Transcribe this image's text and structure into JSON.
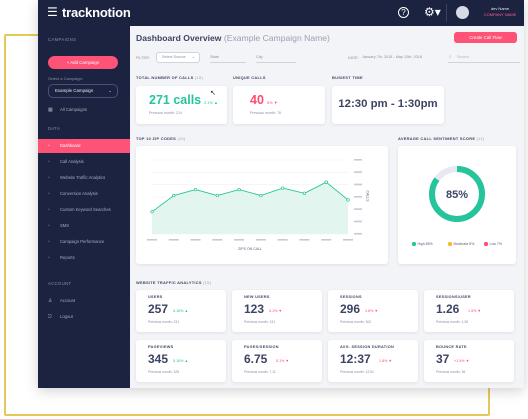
{
  "app": {
    "logo": "tracknotion",
    "user_name": "dev Name",
    "user_company": "COMPANY NAME"
  },
  "icons": {
    "menu": "menu-icon",
    "help": "help-icon",
    "settings": "gear-icon",
    "avatar": "avatar-icon"
  },
  "sidebar": {
    "campaigns_heading": "CAMPAIGNS",
    "add_campaign": "+ Add Campaign",
    "select_label": "Select a Campaign:",
    "selected_campaign": "Example Campaign",
    "all_campaigns": "All Campaigns",
    "data_heading": "DATA",
    "items": [
      {
        "label": "Dashboard",
        "icon": "grid-icon",
        "active": true
      },
      {
        "label": "Call Analysis",
        "icon": "phone-icon",
        "active": false
      },
      {
        "label": "Website Traffic Analytics",
        "icon": "chart-icon",
        "active": false
      },
      {
        "label": "Conversion Analysis",
        "icon": "funnel-icon",
        "active": false
      },
      {
        "label": "Custom Keyword Searches",
        "icon": "search-icon",
        "active": false
      },
      {
        "label": "SMS",
        "icon": "message-icon",
        "active": false
      },
      {
        "label": "Campaign Performance",
        "icon": "bars-icon",
        "active": false
      },
      {
        "label": "Reports",
        "icon": "document-icon",
        "active": false
      }
    ],
    "account_heading": "ACCOUNT",
    "account_items": [
      {
        "label": "Account",
        "icon": "user-icon"
      },
      {
        "label": "Logout",
        "icon": "logout-icon"
      }
    ]
  },
  "header": {
    "title": "Dashboard Overview",
    "subtitle": "(Example Campaign Name)",
    "create_button": "Create Call Flow"
  },
  "filters": {
    "filter_label": "FILTER:",
    "select1": "Select Source",
    "select2": "State",
    "select3": "City",
    "date_label": "DATE:",
    "date_range": "January 7th, 2018 - May 12th, 2018",
    "search_placeholder": "Search"
  },
  "summary": {
    "total_calls_label": "TOTAL NUMBER OF CALLS",
    "total_calls_count": "(15)",
    "total_calls_value": "271 calls",
    "total_calls_pct": "2.1% ▲",
    "total_calls_prev": "Previous month: 214",
    "unique_label": "UNIQUE CALLS",
    "unique_value": "40",
    "unique_pct": "5% ▼",
    "unique_prev": "Previous month: 76",
    "busiest_label": "BUSIEST TIME",
    "busiest_value": "12:30 pm - 1:30pm"
  },
  "zip_chart": {
    "label": "TOP 10 ZIP CODES",
    "count": "(10)",
    "ylabel": "CALLS",
    "xlabel": "ZIPS ON CALL",
    "color": "#25c49a"
  },
  "chart_data": {
    "type": "area",
    "title": "TOP 10 ZIP CODES",
    "x": [
      "",
      "",
      "",
      "",
      "",
      "",
      "",
      "",
      "",
      ""
    ],
    "series": [
      {
        "values": [
          0.3,
          0.52,
          0.6,
          0.52,
          0.6,
          0.52,
          0.62,
          0.55,
          0.7,
          0.46
        ]
      }
    ],
    "ylabel": "CALLS",
    "xlabel": "ZIPS ON CALL",
    "ylim": [
      0,
      1
    ],
    "grid": true
  },
  "sentiment": {
    "label": "AVERAGE CALL SENTIMENT SCORE",
    "count": "(11)",
    "value": "85%",
    "fraction": 0.85,
    "legend": [
      {
        "label": "High 85%",
        "color": "#25c49a"
      },
      {
        "label": "Moderate 8%",
        "color": "#f7b924"
      },
      {
        "label": "Low 7%",
        "color": "#ff4b6e"
      }
    ]
  },
  "traffic": {
    "label": "WEBSITE TRAFFIC ANALYTICS",
    "count": "(15)",
    "metrics": [
      {
        "label": "USERS",
        "value": "257",
        "pct": "5.16% ▲",
        "dir": "up",
        "prev": "Previous month: 231"
      },
      {
        "label": "NEW USERS",
        "value": "123",
        "pct": "5.1% ▼",
        "dir": "down",
        "prev": "Previous month: 131"
      },
      {
        "label": "SESSIONS",
        "value": "296",
        "pct": "1.8% ▼",
        "dir": "down",
        "prev": "Previous month: 302"
      },
      {
        "label": "SESSIONS/USER",
        "value": "1.26",
        "pct": "1.5% ▼",
        "dir": "down",
        "prev": "Previous month: 1.28"
      },
      {
        "label": "PAGEVIEWS",
        "value": "345",
        "pct": "5.16% ▲",
        "dir": "up",
        "prev": "Previous month: 328"
      },
      {
        "label": "PAGES/SESSION",
        "value": "6.75",
        "pct": "5.1% ▼",
        "dir": "down",
        "prev": "Previous month: 7.11"
      },
      {
        "label": "AVG. SESSION DURATION",
        "value": "12:37",
        "pct": "1.8% ▼",
        "dir": "down",
        "prev": "Previous month: 12:51"
      },
      {
        "label": "BOUNCE RATE",
        "value": "37",
        "pct": "+1.5% ▼",
        "dir": "down",
        "prev": "Previous month: 36"
      }
    ]
  }
}
